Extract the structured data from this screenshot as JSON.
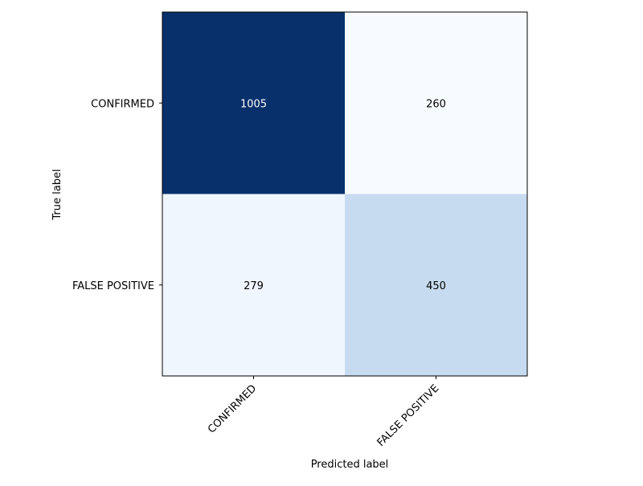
{
  "chart_data": {
    "type": "heatmap",
    "rows": [
      "CONFIRMED",
      "FALSE POSITIVE"
    ],
    "columns": [
      "CONFIRMED",
      "FALSE POSITIVE"
    ],
    "values": [
      [
        1005,
        260
      ],
      [
        279,
        450
      ]
    ],
    "xlabel": "Predicted label",
    "ylabel": "True label",
    "colormap": "Blues",
    "colors": {
      "cells": [
        [
          "#08306b",
          "#f7fbff"
        ],
        [
          "#f0f6fd",
          "#c6dbef"
        ]
      ],
      "light_text": "#ffffff",
      "dark_text": "#000000"
    },
    "grid": false
  }
}
